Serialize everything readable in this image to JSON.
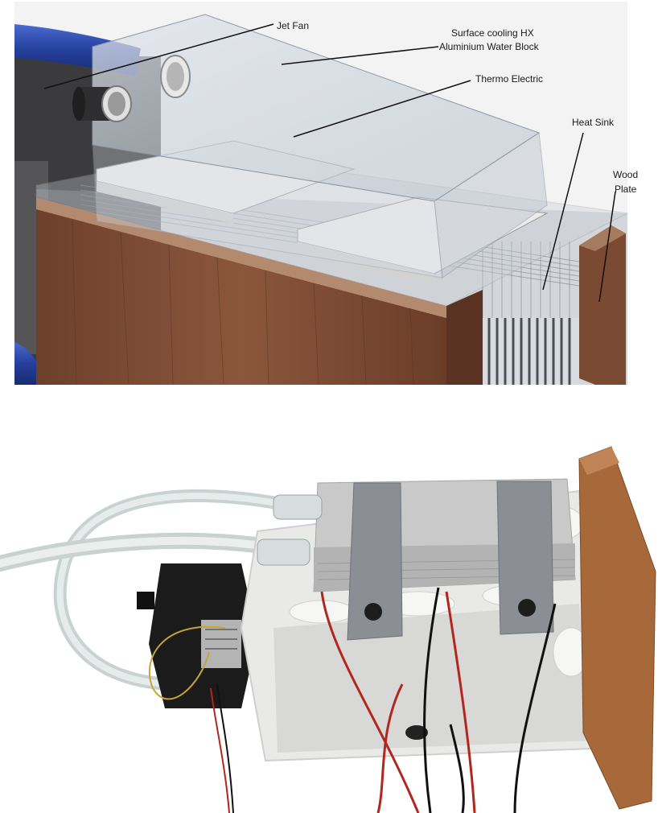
{
  "cad_render": {
    "labels": {
      "jet_fan": "Jet Fan",
      "surface_cooling_line1": "Surface cooling HX",
      "surface_cooling_line2": "Aluminium Water Block",
      "thermo_electric": "Thermo Electric",
      "heat_sink": "Heat Sink",
      "wood_plate_line1": "Wood",
      "wood_plate_line2": "Plate"
    },
    "colors": {
      "background": "#f4f4f4",
      "wood": "#7a4a33",
      "tube": "#2a4aa6",
      "water_block": "#cdd3dc",
      "tec_plate": "#e6e6e6"
    }
  },
  "photo": {
    "colors": {
      "background": "#ffffff",
      "aluminium": "#c9c9c9",
      "bracket": "#8b8f93",
      "sealant": "#ececec",
      "wood": "#a8693a",
      "wire_red": "#b3261e",
      "wire_black": "#111111",
      "tube": "#dfe6e6"
    }
  }
}
